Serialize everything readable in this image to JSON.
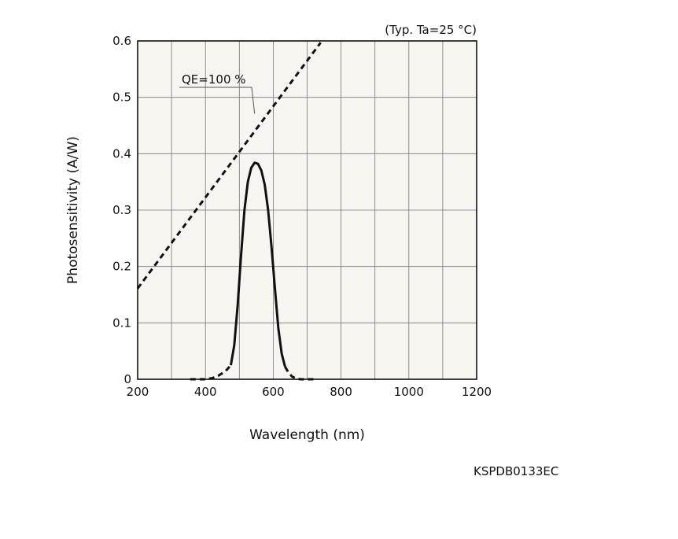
{
  "chart_data": {
    "type": "line",
    "condition_note": "(Typ. Ta=25 °C)",
    "xlabel": "Wavelength (nm)",
    "ylabel": "Photosensitivity (A/W)",
    "xlim": [
      200,
      1200
    ],
    "ylim": [
      0,
      0.6
    ],
    "x_ticks": [
      200,
      400,
      600,
      800,
      1000,
      1200
    ],
    "x_tick_labels": [
      "200",
      "400",
      "600",
      "800",
      "1000",
      "1200"
    ],
    "x_grid_step": 100,
    "y_ticks": [
      0,
      0.1,
      0.2,
      0.3,
      0.4,
      0.5,
      0.6
    ],
    "y_tick_labels": [
      "0",
      "0.1",
      "0.2",
      "0.3",
      "0.4",
      "0.5",
      "0.6"
    ],
    "grid": true,
    "series": [
      {
        "style": "dashed",
        "points": [
          [
            200,
            0.161
          ],
          [
            740,
            0.597
          ]
        ]
      },
      {
        "style": "dashed",
        "points": [
          [
            355,
            0.0
          ],
          [
            380,
            0.0
          ],
          [
            400,
            0.0
          ],
          [
            420,
            0.002
          ],
          [
            440,
            0.007
          ],
          [
            460,
            0.015
          ],
          [
            475,
            0.025
          ]
        ]
      },
      {
        "style": "solid",
        "points": [
          [
            475,
            0.025
          ],
          [
            485,
            0.06
          ],
          [
            495,
            0.13
          ],
          [
            505,
            0.22
          ],
          [
            515,
            0.3
          ],
          [
            525,
            0.35
          ],
          [
            535,
            0.375
          ],
          [
            545,
            0.384
          ],
          [
            555,
            0.382
          ],
          [
            565,
            0.37
          ],
          [
            575,
            0.345
          ],
          [
            585,
            0.3
          ],
          [
            595,
            0.235
          ],
          [
            605,
            0.16
          ],
          [
            615,
            0.09
          ],
          [
            625,
            0.045
          ],
          [
            635,
            0.022
          ]
        ]
      },
      {
        "style": "dashed",
        "points": [
          [
            635,
            0.022
          ],
          [
            645,
            0.012
          ],
          [
            655,
            0.005
          ],
          [
            665,
            0.002
          ],
          [
            680,
            0.0
          ],
          [
            695,
            0.0
          ],
          [
            720,
            0.0
          ]
        ]
      }
    ],
    "annotations": [
      {
        "text": "QE=100 %",
        "x": 545,
        "y": 0.471
      }
    ]
  },
  "figure_code": "KSPDB0133EC"
}
